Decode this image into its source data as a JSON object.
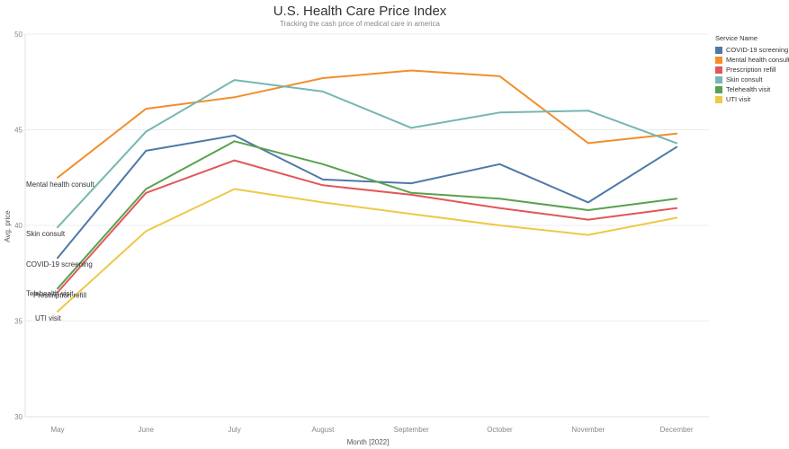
{
  "chart_data": {
    "type": "line",
    "title": "U.S. Health  Care Price Index",
    "subtitle": "Tracking the cash price of medical care in america",
    "xlabel": "Month [2022]",
    "ylabel": "Avg. price",
    "ylim": [
      30,
      50
    ],
    "yticks": [
      "30",
      "35",
      "40",
      "45",
      "50"
    ],
    "grid": true,
    "legend_position": "right",
    "legend_title": "Service Name",
    "categories": [
      "May",
      "June",
      "July",
      "August",
      "September",
      "October",
      "November",
      "December"
    ],
    "series": [
      {
        "name": "COVID-19 screening",
        "color": "#4e79a7",
        "values": [
          38.3,
          43.9,
          44.7,
          42.4,
          42.2,
          43.2,
          41.2,
          44.1
        ]
      },
      {
        "name": "Mental health consult",
        "color": "#f28e2b",
        "values": [
          42.5,
          46.1,
          46.7,
          47.7,
          48.1,
          47.8,
          44.3,
          44.8
        ]
      },
      {
        "name": "Prescription refill",
        "color": "#e15759",
        "values": [
          36.5,
          41.7,
          43.4,
          42.1,
          41.6,
          40.9,
          40.3,
          40.9
        ]
      },
      {
        "name": "Skin consult",
        "color": "#76b7b2",
        "values": [
          39.9,
          44.9,
          47.6,
          47.0,
          45.1,
          45.9,
          46.0,
          44.3
        ]
      },
      {
        "name": "Telehealth visit",
        "color": "#59a14f",
        "values": [
          36.7,
          41.9,
          44.4,
          43.2,
          41.7,
          41.4,
          40.8,
          41.4
        ]
      },
      {
        "name": "UTI visit",
        "color": "#edc948",
        "values": [
          35.5,
          39.7,
          41.9,
          41.2,
          40.6,
          40.0,
          39.5,
          40.4
        ]
      }
    ],
    "end_labels": [
      {
        "series": "Mental health consult",
        "text": "Mental health consult"
      },
      {
        "series": "Skin consult",
        "text": "Skin consult"
      },
      {
        "series": "COVID-19 screening",
        "text": "COVID-19 screening"
      },
      {
        "series": "Telehealth visit",
        "text": "Telehealth visit"
      },
      {
        "series": "Prescription refill",
        "text": "Prescription refill"
      },
      {
        "series": "UTI visit",
        "text": "UTI visit"
      }
    ]
  }
}
